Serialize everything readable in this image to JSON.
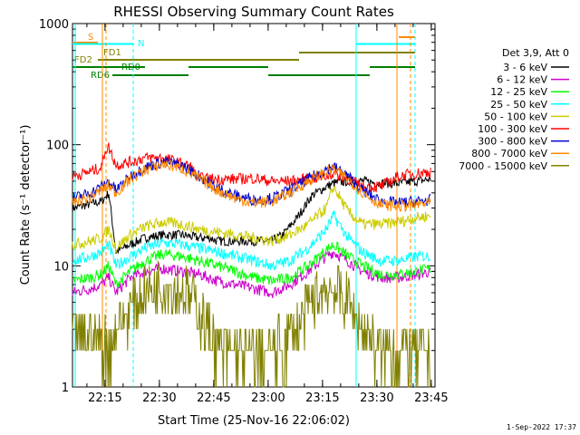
{
  "chart_data": {
    "type": "line",
    "title": "RHESSI Observing Summary Count Rates",
    "xlabel": "Start Time (25-Nov-16 22:06:02)",
    "ylabel": "Count Rate (s⁻¹ detector⁻¹)",
    "y_scale": "log",
    "xlim_minutes": [
      0,
      100
    ],
    "ylim": [
      1,
      1000
    ],
    "x_ticks": [
      {
        "label": "22:15",
        "minute": 8.97
      },
      {
        "label": "22:30",
        "minute": 23.97
      },
      {
        "label": "22:45",
        "minute": 38.97
      },
      {
        "label": "23:00",
        "minute": 53.97
      },
      {
        "label": "23:15",
        "minute": 68.97
      },
      {
        "label": "23:30",
        "minute": 83.97
      },
      {
        "label": "23:45",
        "minute": 98.97
      }
    ],
    "y_ticks": [
      {
        "label": "1",
        "value": 1
      },
      {
        "label": "10",
        "value": 10
      },
      {
        "label": "100",
        "value": 100
      },
      {
        "label": "1000",
        "value": 1000
      }
    ],
    "grid": false,
    "legend_position": "right",
    "legend_header": "Det 3,9, Att 0",
    "series": [
      {
        "name": "3 - 6 keV",
        "color": "#000000",
        "x": [
          0,
          8,
          10,
          12,
          16,
          20,
          25,
          30,
          35,
          38,
          40,
          45,
          50,
          55,
          58,
          62,
          66,
          70,
          72,
          76,
          80,
          85,
          90,
          95,
          99
        ],
        "y": [
          30,
          34,
          40,
          13,
          15,
          17,
          18,
          18,
          17,
          17,
          16,
          16,
          16,
          16,
          18,
          25,
          38,
          45,
          48,
          50,
          50,
          48,
          48,
          50,
          52
        ]
      },
      {
        "name": "6 - 12 keV",
        "color": "#cc00cc",
        "x": [
          0,
          5,
          8,
          10,
          12,
          16,
          20,
          25,
          30,
          35,
          40,
          45,
          50,
          55,
          60,
          65,
          70,
          72,
          76,
          80,
          85,
          90,
          95,
          99
        ],
        "y": [
          6,
          6.5,
          7,
          8,
          6,
          8,
          9,
          9.5,
          9,
          8.5,
          7.5,
          7,
          6.5,
          6,
          7,
          9,
          12,
          13,
          11,
          9,
          8,
          8,
          8.5,
          9
        ]
      },
      {
        "name": "12 - 25 keV",
        "color": "#00ff00",
        "x": [
          0,
          5,
          8,
          10,
          12,
          16,
          20,
          25,
          30,
          35,
          40,
          45,
          50,
          55,
          60,
          65,
          70,
          72,
          76,
          80,
          85,
          90,
          95,
          99
        ],
        "y": [
          7.5,
          8,
          8.5,
          10,
          7,
          9,
          11,
          12.5,
          12,
          11,
          10,
          9,
          8,
          7.5,
          8,
          10,
          13.5,
          15,
          12,
          10,
          8.5,
          8.5,
          9,
          9.5
        ]
      },
      {
        "name": "25 - 50 keV",
        "color": "#00ffff",
        "x": [
          0,
          5,
          8,
          10,
          12,
          16,
          20,
          25,
          30,
          35,
          40,
          45,
          50,
          55,
          60,
          65,
          70,
          72,
          76,
          80,
          85,
          90,
          95,
          99
        ],
        "y": [
          11,
          12,
          13,
          15,
          10,
          12,
          14,
          15.5,
          15,
          14,
          13,
          12,
          11,
          10,
          11,
          14,
          20,
          26,
          17,
          13,
          11,
          11,
          12,
          12
        ]
      },
      {
        "name": "50 - 100 keV",
        "color": "#cccc00",
        "x": [
          0,
          5,
          8,
          10,
          12,
          16,
          20,
          25,
          30,
          35,
          40,
          45,
          50,
          55,
          60,
          65,
          70,
          72,
          76,
          80,
          85,
          90,
          95,
          99
        ],
        "y": [
          15,
          16,
          17,
          20,
          14,
          18,
          21,
          23,
          22,
          20,
          19,
          18,
          17,
          16,
          18,
          22,
          30,
          45,
          28,
          22,
          22,
          23,
          25,
          26
        ]
      },
      {
        "name": "100 - 300 keV",
        "color": "#ff0000",
        "x": [
          0,
          5,
          8,
          9,
          10,
          12,
          16,
          20,
          25,
          30,
          33,
          34,
          35,
          40,
          45,
          50,
          55,
          60,
          65,
          70,
          72,
          76,
          80,
          85,
          90,
          95,
          99
        ],
        "y": [
          55,
          60,
          65,
          90,
          95,
          68,
          72,
          78,
          78,
          70,
          65,
          55,
          53,
          52,
          52,
          53,
          50,
          50,
          52,
          55,
          58,
          52,
          45,
          45,
          55,
          58,
          60
        ]
      },
      {
        "name": "300 - 800 keV",
        "color": "#0000cc",
        "x": [
          0,
          5,
          8,
          10,
          12,
          16,
          20,
          25,
          30,
          35,
          40,
          45,
          50,
          55,
          60,
          65,
          70,
          72,
          76,
          80,
          85,
          90,
          95,
          99
        ],
        "y": [
          36,
          40,
          45,
          50,
          42,
          55,
          65,
          72,
          68,
          55,
          44,
          38,
          35,
          36,
          42,
          52,
          63,
          66,
          55,
          42,
          34,
          33,
          34,
          35
        ]
      },
      {
        "name": "800 - 7000 keV",
        "color": "#ff8800",
        "x": [
          0,
          5,
          8,
          10,
          12,
          16,
          20,
          25,
          30,
          35,
          40,
          45,
          50,
          55,
          60,
          65,
          70,
          72,
          76,
          80,
          85,
          90,
          95,
          99
        ],
        "y": [
          33,
          37,
          42,
          46,
          40,
          52,
          62,
          69,
          64,
          52,
          42,
          36,
          33,
          34,
          40,
          50,
          60,
          63,
          52,
          40,
          32,
          31,
          32,
          33
        ]
      },
      {
        "name": "7000 - 15000 keV",
        "color": "#808000",
        "x": [
          0,
          5,
          8,
          10,
          12,
          16,
          20,
          25,
          30,
          33,
          35,
          38,
          40,
          45,
          50,
          55,
          58,
          62,
          66,
          70,
          72,
          76,
          80,
          85,
          90,
          95,
          99
        ],
        "y": [
          2.5,
          2.6,
          2.4,
          2.2,
          3,
          4.5,
          6,
          7,
          6.2,
          5.5,
          4,
          3,
          2,
          2,
          2,
          2,
          2.2,
          3,
          5,
          6.5,
          6.5,
          5,
          3,
          2,
          2,
          2,
          2
        ]
      }
    ],
    "flag_labels": {
      "s": "S",
      "n": "N",
      "fd1": "FD1",
      "fd2": "FD2",
      "rd0": "RD0",
      "rd6": "RD6"
    },
    "footer_date": "1-Sep-2022 17:37"
  }
}
